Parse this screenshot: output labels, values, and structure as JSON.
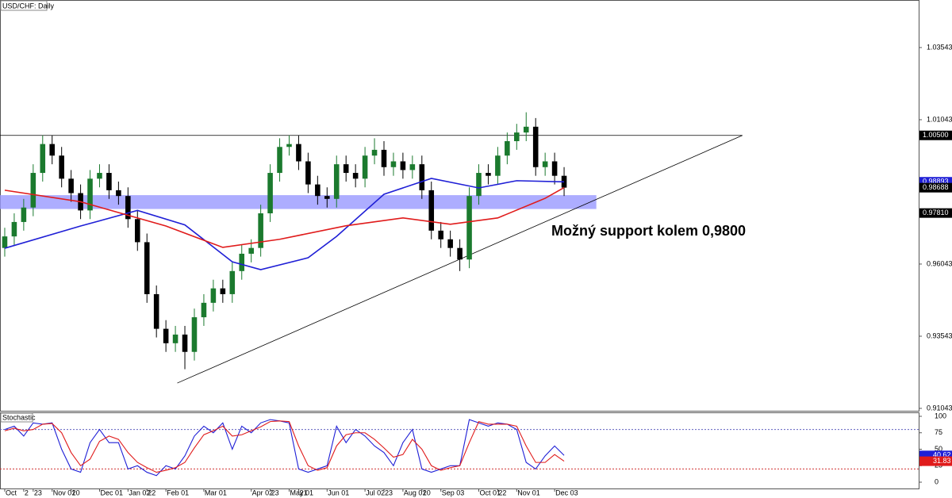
{
  "chart_data": {
    "type": "candlestick",
    "title": "USD/CHF: Daily",
    "annotation": "Možný support kolem 0,9800",
    "categories": [
      "Oct",
      null,
      "2",
      "23",
      null,
      "Nov 01",
      null,
      "20",
      null,
      null,
      "Dec 01",
      null,
      null,
      "Jan 02",
      null,
      "22",
      null,
      "Feb 01",
      null,
      null,
      null,
      "Mar 01",
      null,
      null,
      null,
      null,
      "Apr 02",
      null,
      "23",
      null,
      "May 01",
      "21",
      null,
      null,
      "Jun 01",
      null,
      null,
      null,
      "Jul 02",
      null,
      "23",
      null,
      "Aug 01",
      null,
      "20",
      null,
      "Sep 03",
      null,
      null,
      null,
      "Oct 01",
      null,
      "22",
      null,
      "Nov 01",
      null,
      null,
      null,
      "Dec 03",
      null
    ],
    "open": [
      0.966,
      0.97,
      0.975,
      0.98,
      0.992,
      1.002,
      0.998,
      0.99,
      0.985,
      0.979,
      0.99,
      0.992,
      0.986,
      0.984,
      0.976,
      0.968,
      0.95,
      0.938,
      0.933,
      0.936,
      0.93,
      0.942,
      0.947,
      0.952,
      0.95,
      0.958,
      0.964,
      0.966,
      0.978,
      0.992,
      1.001,
      1.002,
      0.996,
      0.988,
      0.984,
      0.983,
      0.995,
      0.992,
      0.99,
      0.998,
      1.0,
      0.994,
      0.996,
      0.993,
      0.995,
      0.986,
      0.972,
      0.969,
      0.966,
      0.962,
      0.984,
      0.992,
      0.991,
      0.998,
      1.003,
      1.006,
      1.008,
      0.994,
      0.996,
      0.991
    ],
    "high": [
      0.973,
      0.978,
      0.983,
      0.995,
      1.005,
      1.005,
      1.001,
      0.993,
      0.988,
      0.993,
      0.995,
      0.995,
      0.989,
      0.987,
      0.979,
      0.971,
      0.953,
      0.941,
      0.939,
      0.939,
      0.945,
      0.95,
      0.955,
      0.955,
      0.961,
      0.967,
      0.969,
      0.981,
      0.995,
      1.004,
      1.005,
      1.005,
      0.999,
      0.991,
      0.987,
      0.998,
      0.998,
      0.995,
      1.001,
      1.004,
      1.003,
      0.999,
      0.999,
      0.998,
      0.998,
      0.989,
      0.975,
      0.972,
      0.969,
      0.987,
      0.995,
      0.995,
      1.001,
      1.006,
      1.009,
      1.013,
      1.011,
      0.999,
      0.999,
      0.994
    ],
    "low": [
      0.963,
      0.967,
      0.972,
      0.977,
      0.989,
      0.995,
      0.987,
      0.982,
      0.976,
      0.976,
      0.987,
      0.983,
      0.981,
      0.973,
      0.965,
      0.947,
      0.935,
      0.93,
      0.93,
      0.924,
      0.927,
      0.939,
      0.944,
      0.947,
      0.947,
      0.955,
      0.961,
      0.963,
      0.975,
      0.989,
      0.998,
      0.993,
      0.985,
      0.981,
      0.98,
      0.98,
      0.989,
      0.987,
      0.987,
      0.995,
      0.991,
      0.991,
      0.99,
      0.99,
      0.983,
      0.969,
      0.966,
      0.963,
      0.958,
      0.959,
      0.981,
      0.988,
      0.988,
      0.995,
      1.0,
      1.003,
      0.991,
      0.991,
      0.988,
      0.984
    ],
    "close": [
      0.97,
      0.975,
      0.98,
      0.992,
      1.002,
      0.998,
      0.99,
      0.985,
      0.979,
      0.99,
      0.992,
      0.986,
      0.984,
      0.976,
      0.968,
      0.95,
      0.938,
      0.933,
      0.936,
      0.93,
      0.942,
      0.947,
      0.952,
      0.95,
      0.958,
      0.964,
      0.966,
      0.978,
      0.992,
      1.001,
      1.002,
      0.996,
      0.988,
      0.984,
      0.983,
      0.995,
      0.992,
      0.99,
      0.998,
      1.0,
      0.994,
      0.996,
      0.993,
      0.995,
      0.986,
      0.972,
      0.969,
      0.966,
      0.962,
      0.984,
      0.992,
      0.991,
      0.998,
      1.003,
      1.006,
      1.008,
      0.994,
      0.996,
      0.991,
      0.9869
    ],
    "up_color": "#1b7a2e",
    "down_color": "#000000",
    "moving_averages": [
      {
        "color": "#1f1fd6",
        "x": [
          0,
          8,
          14,
          19,
          24,
          27,
          32,
          35,
          40,
          45,
          50,
          54,
          59
        ],
        "values": [
          0.9659,
          0.9736,
          0.979,
          0.974,
          0.9612,
          0.9585,
          0.9626,
          0.97,
          0.9846,
          0.9901,
          0.9868,
          0.9893,
          0.9889
        ]
      },
      {
        "color": "#e01b1b",
        "x": [
          0,
          8,
          17,
          23,
          29,
          36,
          42,
          47,
          52,
          57,
          59
        ],
        "values": [
          0.986,
          0.982,
          0.9736,
          0.9662,
          0.969,
          0.9737,
          0.9764,
          0.9742,
          0.9764,
          0.9832,
          0.9869
        ]
      }
    ],
    "zone": {
      "from": 0.9795,
      "to": 0.9843,
      "x_end": 62.4,
      "color": "#9999ff"
    },
    "resistance": {
      "value": 1.005,
      "x_end": 77.8
    },
    "trendline": {
      "x": [
        18.2,
        77.8
      ],
      "values": [
        0.9192,
        1.005
      ]
    },
    "xlim": [
      -0.5,
      96.4
    ],
    "ylim": [
      0.9096,
      1.0519
    ],
    "yticks": [
      1.03543,
      1.01043,
      0.96043,
      0.93543,
      0.91043
    ],
    "price_labels": [
      {
        "value": 1.005,
        "label": "1.00500",
        "color": "#000000"
      },
      {
        "value": 0.98893,
        "label": "0.98893",
        "color": "#1f1fd6"
      },
      {
        "value": 0.98688,
        "label": "0.98688",
        "color": "#000000"
      },
      {
        "value": 0.9781,
        "label": "0.97810",
        "color": "#000000"
      }
    ],
    "stochastic": {
      "title": "Stochastic",
      "ylim": [
        -9.6,
        104.8
      ],
      "yticks": [
        100,
        75,
        50,
        25,
        0
      ],
      "levels": [
        80,
        20
      ],
      "series": [
        {
          "color": "#1f1fd6",
          "values": [
            80,
            85,
            70,
            90,
            88,
            90,
            50,
            20,
            15,
            60,
            80,
            60,
            60,
            20,
            25,
            15,
            10,
            25,
            20,
            40,
            70,
            85,
            75,
            90,
            50,
            85,
            75,
            90,
            95,
            93,
            90,
            20,
            15,
            20,
            25,
            85,
            60,
            80,
            70,
            55,
            45,
            25,
            60,
            80,
            20,
            15,
            20,
            25,
            25,
            95,
            90,
            85,
            90,
            88,
            80,
            30,
            20,
            40,
            55,
            40.62
          ]
        },
        {
          "color": "#e01b1b",
          "values": [
            78,
            82,
            78,
            80,
            88,
            89,
            75,
            45,
            25,
            35,
            62,
            70,
            65,
            45,
            30,
            22,
            15,
            18,
            22,
            30,
            52,
            72,
            78,
            85,
            70,
            72,
            78,
            84,
            92,
            93,
            92,
            55,
            25,
            18,
            22,
            55,
            72,
            75,
            75,
            65,
            52,
            38,
            42,
            65,
            50,
            25,
            18,
            22,
            25,
            60,
            92,
            88,
            88,
            88,
            85,
            55,
            30,
            30,
            42,
            31.83
          ]
        }
      ]
    }
  }
}
